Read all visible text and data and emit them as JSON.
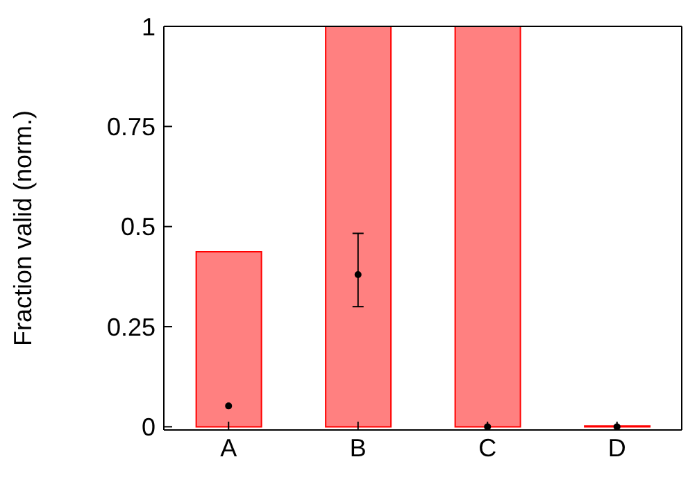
{
  "chart_data": {
    "type": "bar",
    "ylabel": "Fraction valid (norm.)",
    "categories": [
      "A",
      "B",
      "C",
      "D"
    ],
    "ylim": [
      -0.008,
      1
    ],
    "yticks": [
      0,
      0.25,
      0.5,
      0.75,
      1
    ],
    "marker": "circle",
    "legend": false,
    "series": [
      {
        "color": "#ff8080",
        "values": [
          0.437,
          1,
          1,
          0.002
        ]
      },
      {
        "type": "scatter",
        "color": "#000000",
        "x": [
          "A",
          "B",
          "C",
          "D"
        ],
        "values": [
          0.052,
          0.38,
          0,
          0
        ],
        "errors": [
          null,
          [
            0.3,
            0.483
          ],
          null,
          null
        ]
      }
    ]
  }
}
